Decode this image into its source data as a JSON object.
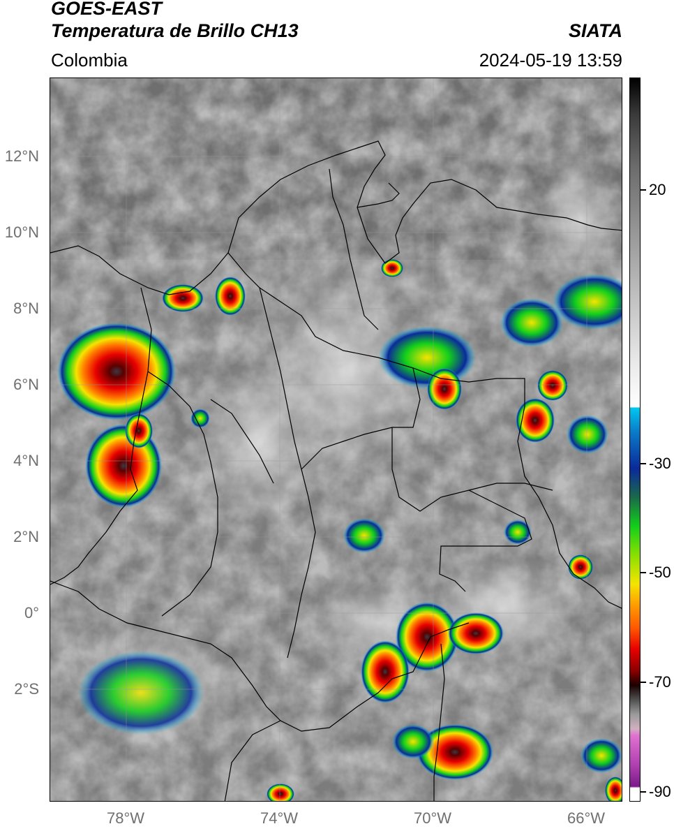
{
  "header": {
    "satellite": "GOES-EAST",
    "product": "Temperatura de Brillo CH13",
    "brand": "SIATA",
    "region": "Colombia",
    "timestamp": "2024-05-19 13:59"
  },
  "axes": {
    "lat_labels": [
      "12°N",
      "10°N",
      "8°N",
      "6°N",
      "4°N",
      "2°N",
      "0°",
      "2°S"
    ],
    "lon_labels": [
      "78°W",
      "74°W",
      "70°W",
      "66°W"
    ]
  },
  "colorbar": {
    "labels": [
      "20",
      "-30",
      "-50",
      "-70",
      "-90"
    ],
    "colors": {
      "cold_black": "#000000",
      "gray_mid": "#888888",
      "white": "#ffffff",
      "cyan": "#00c8f0",
      "blue": "#0a2a9a",
      "green": "#12d01a",
      "yellow": "#f6e400",
      "orange": "#ff7a00",
      "red": "#e80000",
      "dark_red": "#5a0000",
      "pink": "#e070d0",
      "purple": "#7a1a8a"
    }
  }
}
